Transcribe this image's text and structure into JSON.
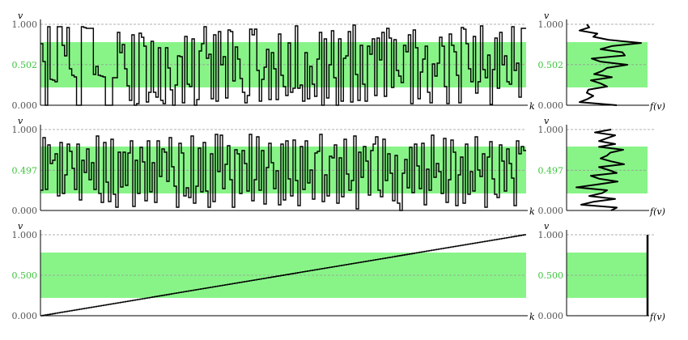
{
  "chart_data": [
    {
      "type": "line",
      "step": true,
      "ylabel": "v",
      "xlabel": "k",
      "ylim": [
        0,
        1
      ],
      "band": [
        0.22,
        0.78
      ],
      "ytick_labels": [
        "1.000",
        "0.502",
        "0.000"
      ],
      "ytick_values": [
        1.0,
        0.502,
        0.0
      ],
      "x_count": 200,
      "values": [
        0.76,
        0.54,
        0.0,
        0.97,
        0.32,
        0.31,
        0.29,
        0.97,
        0.97,
        0.74,
        0.61,
        0.96,
        0.45,
        0.37,
        0.35,
        0.0,
        0.0,
        0.97,
        0.96,
        0.95,
        0.95,
        0.95,
        0.38,
        0.48,
        0.37,
        0.36,
        0.35,
        0.0,
        0.0,
        0.0,
        0.34,
        0.34,
        0.9,
        0.65,
        0.75,
        0.45,
        0.24,
        0.06,
        0.87,
        0.0,
        0.02,
        0.89,
        0.84,
        0.73,
        0.04,
        0.16,
        0.79,
        0.16,
        0.1,
        0.71,
        0.06,
        0.02,
        0.71,
        0.46,
        0.19,
        0.0,
        0.25,
        0.61,
        0.6,
        0.03,
        0.85,
        0.26,
        0.23,
        0.82,
        0.0,
        0.07,
        0.67,
        0.76,
        0.97,
        0.58,
        0.63,
        0.08,
        0.87,
        0.05,
        0.91,
        0.5,
        0.6,
        0.09,
        0.93,
        0.91,
        0.3,
        0.72,
        0.57,
        0.33,
        0.16,
        0.03,
        0.12,
        0.94,
        0.87,
        0.94,
        0.43,
        0.05,
        0.32,
        0.47,
        0.69,
        0.07,
        0.65,
        0.45,
        0.07,
        0.88,
        0.37,
        0.23,
        0.12,
        0.77,
        0.16,
        0.21,
        0.98,
        0.21,
        0.25,
        0.05,
        0.65,
        0.08,
        0.48,
        0.26,
        0.11,
        0.57,
        0.9,
        0.0,
        0.82,
        0.09,
        0.5,
        0.92,
        0.34,
        0.0,
        0.82,
        0.05,
        0.58,
        0.61,
        0.91,
        0.04,
        0.99,
        0.38,
        0.06,
        0.74,
        0.26,
        0.05,
        0.73,
        0.63,
        0.82,
        0.12,
        0.83,
        0.56,
        0.9,
        0.11,
        0.95,
        0.83,
        0.22,
        0.81,
        0.43,
        0.36,
        0.28,
        0.74,
        0.66,
        0.87,
        0.02,
        0.93,
        0.71,
        0.08,
        0.41,
        0.57,
        0.73,
        0.16,
        0.03,
        0.51,
        0.36,
        0.52,
        0.84,
        0.73,
        0.23,
        0.02,
        0.88,
        0.74,
        0.66,
        0.37,
        0.03,
        0.96,
        0.94,
        0.76,
        0.45,
        0.29,
        0.85,
        0.15,
        0.29,
        0.98,
        0.44,
        0.34,
        0.62,
        0.01,
        0.44,
        0.83,
        0.21,
        0.9,
        0.5,
        0.61,
        0.29,
        0.26,
        0.97,
        0.43,
        0.52,
        0.1,
        0.95,
        0.95
      ],
      "density_xlabel": "f(v)",
      "density": [
        0.62,
        0.16,
        0.26,
        0.33,
        0.25,
        0.27,
        0.5,
        0.42,
        0.3,
        0.56,
        0.34,
        0.44,
        0.5,
        0.75,
        0.42,
        0.31,
        0.72,
        0.69,
        0.42,
        0.56,
        0.92,
        0.52,
        0.33,
        0.38,
        0.16,
        0.28,
        0.25
      ]
    },
    {
      "type": "line",
      "step": true,
      "ylabel": "v",
      "xlabel": "k",
      "ylim": [
        0,
        1
      ],
      "band": [
        0.21,
        0.79
      ],
      "ytick_labels": [
        "1.000",
        "0.497",
        "0.000"
      ],
      "ytick_values": [
        1.0,
        0.497,
        0.0
      ],
      "x_count": 200,
      "values": [
        0.25,
        0.9,
        0.26,
        0.81,
        0.58,
        0.62,
        0.7,
        0.18,
        0.84,
        0.21,
        0.44,
        0.82,
        0.73,
        0.52,
        0.26,
        0.82,
        0.13,
        0.62,
        0.47,
        0.76,
        0.38,
        0.59,
        0.26,
        0.92,
        0.21,
        0.1,
        0.84,
        0.35,
        0.11,
        0.88,
        0.2,
        0.04,
        0.72,
        0.29,
        0.72,
        0.31,
        0.71,
        0.86,
        0.05,
        0.62,
        0.21,
        0.78,
        0.6,
        0.12,
        0.86,
        0.23,
        0.59,
        0.1,
        0.86,
        0.42,
        0.76,
        0.72,
        0.36,
        0.9,
        0.54,
        0.3,
        0.04,
        0.83,
        0.71,
        0.18,
        0.28,
        0.16,
        0.92,
        0.09,
        0.3,
        0.77,
        0.23,
        0.84,
        0.24,
        0.04,
        0.7,
        0.11,
        0.94,
        0.48,
        0.93,
        0.27,
        0.57,
        0.8,
        0.38,
        0.04,
        0.75,
        0.7,
        0.21,
        0.74,
        0.58,
        0.24,
        0.94,
        0.12,
        0.38,
        0.91,
        0.25,
        0.74,
        0.08,
        0.53,
        0.83,
        0.59,
        0.27,
        0.49,
        0.07,
        0.82,
        0.13,
        0.86,
        0.39,
        0.18,
        0.87,
        0.37,
        0.06,
        0.79,
        0.26,
        0.86,
        0.34,
        0.5,
        0.14,
        0.71,
        0.73,
        0.94,
        0.11,
        0.44,
        0.18,
        0.67,
        0.65,
        0.81,
        0.09,
        0.65,
        0.17,
        0.88,
        0.45,
        0.25,
        0.37,
        0.92,
        0.02,
        0.72,
        0.41,
        0.79,
        0.61,
        0.19,
        0.74,
        0.82,
        0.91,
        0.25,
        0.17,
        0.88,
        0.37,
        0.7,
        0.46,
        0.12,
        0.68,
        0.09,
        0.0,
        0.46,
        0.63,
        0.28,
        0.78,
        0.22,
        0.82,
        0.55,
        0.27,
        0.83,
        0.07,
        0.51,
        0.25,
        0.93,
        0.41,
        0.58,
        0.48,
        0.21,
        0.89,
        0.1,
        0.38,
        0.87,
        0.72,
        0.06,
        0.44,
        0.66,
        0.09,
        0.82,
        0.2,
        0.48,
        0.24,
        0.91,
        0.5,
        0.42,
        0.7,
        0.04,
        0.66,
        0.85,
        0.39,
        0.2,
        0.16,
        0.81,
        0.61,
        0.24,
        0.76,
        0.58,
        0.4,
        0.06,
        0.86,
        0.7,
        0.79,
        0.74
      ],
      "density_xlabel": "f(v)",
      "density": [
        0.55,
        0.62,
        0.18,
        0.33,
        0.6,
        0.28,
        0.44,
        0.5,
        0.12,
        0.38,
        0.63,
        0.4,
        0.3,
        0.62,
        0.52,
        0.4,
        0.71,
        0.55,
        0.42,
        0.5,
        0.54,
        0.7,
        0.4,
        0.6,
        0.4,
        0.5,
        0.6,
        0.35,
        0.55
      ]
    },
    {
      "type": "line",
      "step": true,
      "ylabel": "v",
      "xlabel": "k",
      "ylim": [
        0,
        1
      ],
      "band": [
        0.22,
        0.78
      ],
      "ytick_labels": [
        "1.000",
        "0.500",
        "0.000"
      ],
      "ytick_values": [
        1.0,
        0.5,
        0.0
      ],
      "x_count": 200,
      "ramp": [
        0,
        1
      ],
      "density_xlabel": "f(v)",
      "density_uniform": true
    }
  ],
  "colors": {
    "band": "#88f488",
    "middle_tick": "#3ec43e",
    "line": "#000000",
    "grid": "#999999",
    "tick": "#555555"
  }
}
